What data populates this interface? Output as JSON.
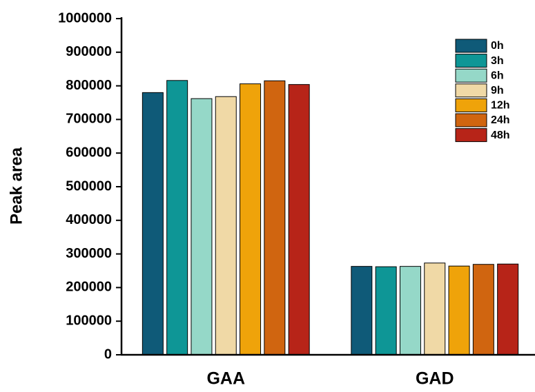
{
  "chart_data": {
    "type": "bar",
    "y_label": "Peak area",
    "categories": [
      "GAA",
      "GAD"
    ],
    "series": [
      {
        "name": "0h",
        "color": "#0f5a78",
        "values": [
          780000,
          263000
        ]
      },
      {
        "name": "3h",
        "color": "#0e9696",
        "values": [
          816000,
          262000
        ]
      },
      {
        "name": "6h",
        "color": "#95d8c8",
        "values": [
          762000,
          263000
        ]
      },
      {
        "name": "9h",
        "color": "#f0d9a6",
        "values": [
          768000,
          273000
        ]
      },
      {
        "name": "12h",
        "color": "#efa30a",
        "values": [
          806000,
          264000
        ]
      },
      {
        "name": "24h",
        "color": "#d06510",
        "values": [
          815000,
          269000
        ]
      },
      {
        "name": "48h",
        "color": "#b72418",
        "values": [
          804000,
          270000
        ]
      }
    ],
    "ylim": [
      0,
      1000000
    ],
    "yticks": [
      0,
      100000,
      200000,
      300000,
      400000,
      500000,
      600000,
      700000,
      800000,
      900000,
      1000000
    ],
    "legend": "upper-right"
  }
}
